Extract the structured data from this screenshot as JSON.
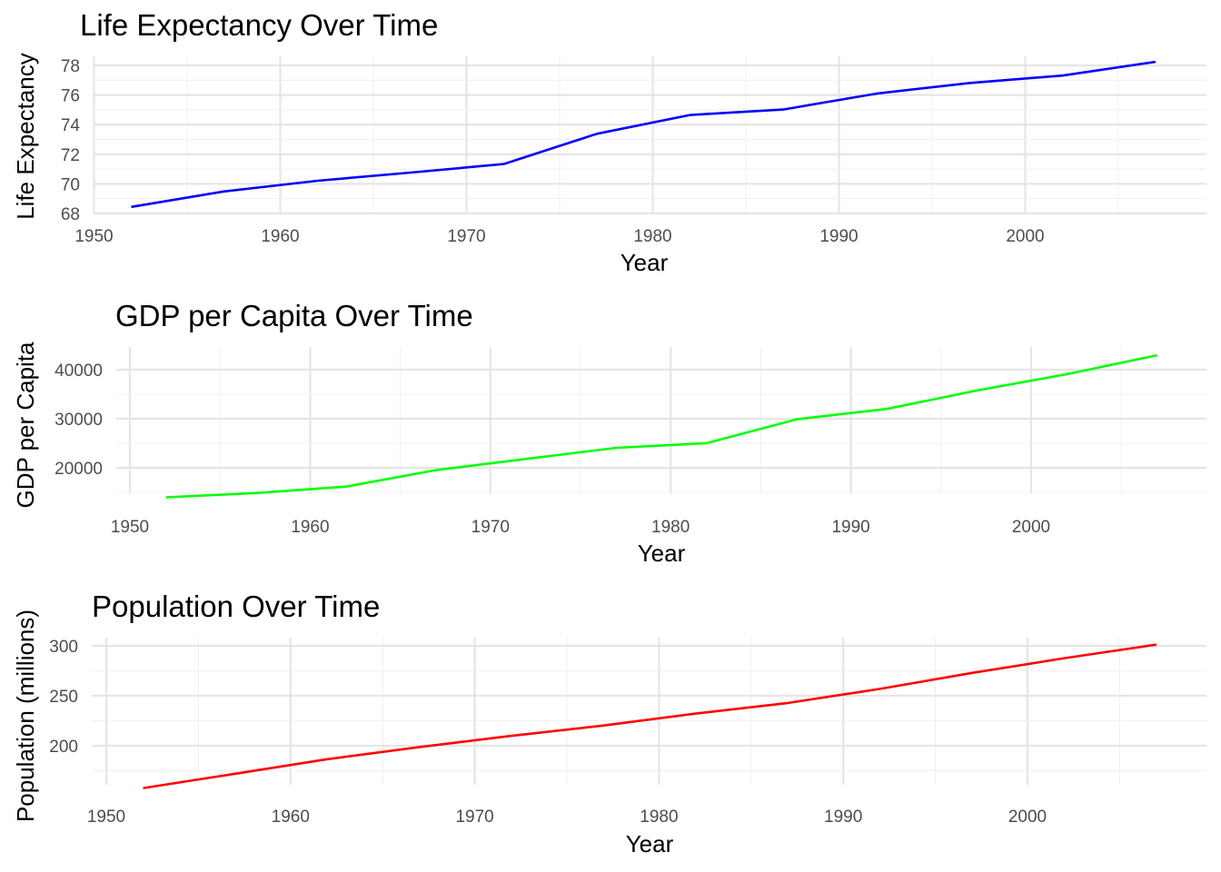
{
  "figure": {
    "background": "#ffffff"
  },
  "chart_data": [
    {
      "type": "line",
      "title": "Life Expectancy Over Time",
      "xlabel": "Year",
      "ylabel": "Life Expectancy",
      "color": "#0000ff",
      "grid": true,
      "legend": "none",
      "xlim": [
        1952,
        2007
      ],
      "ylim": [
        68.4,
        78.3
      ],
      "xticks": [
        1950,
        1960,
        1970,
        1980,
        1990,
        2000
      ],
      "yticks": [
        68,
        70,
        72,
        74,
        76,
        78
      ],
      "x": [
        1952,
        1957,
        1962,
        1967,
        1972,
        1977,
        1982,
        1987,
        1992,
        1997,
        2002,
        2007
      ],
      "y": [
        68.44,
        69.49,
        70.21,
        70.76,
        71.34,
        73.38,
        74.65,
        75.02,
        76.09,
        76.81,
        77.31,
        78.24
      ]
    },
    {
      "type": "line",
      "title": "GDP per Capita Over Time",
      "xlabel": "Year",
      "ylabel": "GDP per Capita",
      "color": "#00ff00",
      "grid": true,
      "legend": "none",
      "xlim": [
        1952,
        2007
      ],
      "ylim": [
        13990,
        42952
      ],
      "xticks": [
        1950,
        1960,
        1970,
        1980,
        1990,
        2000
      ],
      "yticks": [
        20000,
        30000,
        40000
      ],
      "x": [
        1952,
        1957,
        1962,
        1967,
        1972,
        1977,
        1982,
        1987,
        1992,
        1997,
        2002,
        2007
      ],
      "y": [
        13990,
        14847,
        16173,
        19530,
        21806,
        24073,
        25010,
        29884,
        32004,
        35767,
        39097,
        42952
      ]
    },
    {
      "type": "line",
      "title": "Population Over Time",
      "xlabel": "Year",
      "ylabel": "Population (millions)",
      "color": "#ff0000",
      "grid": true,
      "legend": "none",
      "xlim": [
        1952,
        2007
      ],
      "ylim": [
        157.6,
        301.1
      ],
      "xticks": [
        1950,
        1960,
        1970,
        1980,
        1990,
        2000
      ],
      "yticks": [
        200,
        250,
        300
      ],
      "x": [
        1952,
        1957,
        1962,
        1967,
        1972,
        1977,
        1982,
        1987,
        1992,
        1997,
        2002,
        2007
      ],
      "y": [
        157.6,
        171.98,
        186.54,
        198.71,
        209.9,
        220.24,
        232.19,
        242.8,
        256.89,
        272.91,
        287.68,
        301.14
      ]
    }
  ]
}
